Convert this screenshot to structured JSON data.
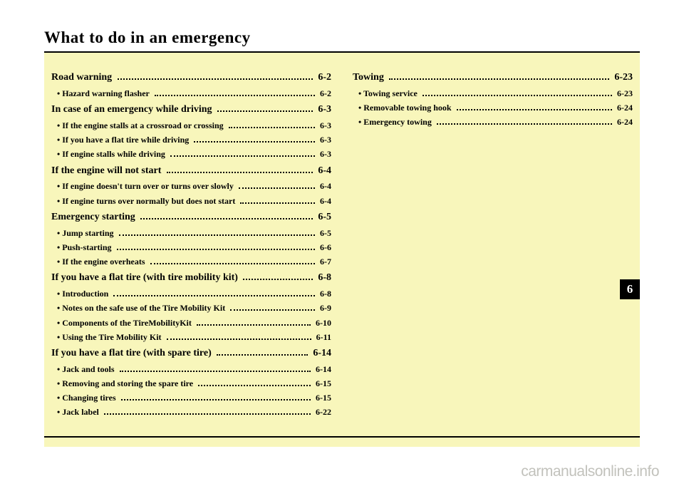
{
  "title": "What to do in an emergency",
  "chapter": "6",
  "watermark": "carmanualsonline.info",
  "col1": [
    {
      "type": "section",
      "label": "Road warning",
      "page": "6-2"
    },
    {
      "type": "sub",
      "label": "• Hazard warning flasher",
      "page": "6-2"
    },
    {
      "type": "section",
      "label": "In case of an emergency while driving",
      "page": "6-3"
    },
    {
      "type": "sub",
      "label": "• If the engine stalls at a crossroad or crossing",
      "page": "6-3"
    },
    {
      "type": "sub",
      "label": "• If you have a flat tire while driving",
      "page": "6-3"
    },
    {
      "type": "sub",
      "label": "• If engine stalls while driving",
      "page": "6-3"
    },
    {
      "type": "section",
      "label": "If the engine will not start",
      "page": "6-4"
    },
    {
      "type": "sub",
      "label": "• If engine doesn't turn over or turns over slowly",
      "page": "6-4"
    },
    {
      "type": "sub",
      "label": "• If engine turns over normally but does not start",
      "page": "6-4"
    },
    {
      "type": "section",
      "label": "Emergency starting",
      "page": "6-5"
    },
    {
      "type": "sub",
      "label": "• Jump starting",
      "page": "6-5"
    },
    {
      "type": "sub",
      "label": "• Push-starting",
      "page": "6-6"
    },
    {
      "type": "sub",
      "label": "• If the engine overheats",
      "page": "6-7"
    },
    {
      "type": "section",
      "label": "If you have a flat tire (with tire mobility kit)",
      "page": "6-8"
    },
    {
      "type": "sub",
      "label": "• Introduction",
      "page": "6-8"
    },
    {
      "type": "sub",
      "label": "• Notes on the safe use of the Tire Mobility Kit",
      "page": "6-9"
    },
    {
      "type": "sub",
      "label": "• Components of the TireMobilityKit",
      "page": "6-10"
    },
    {
      "type": "sub",
      "label": "• Using the Tire Mobility Kit",
      "page": "6-11"
    },
    {
      "type": "section",
      "label": "If you have a flat tire (with spare tire)",
      "page": "6-14"
    },
    {
      "type": "sub",
      "label": "• Jack and tools",
      "page": "6-14"
    },
    {
      "type": "sub",
      "label": "• Removing and storing the spare tire",
      "page": "6-15"
    },
    {
      "type": "sub",
      "label": "• Changing tires",
      "page": "6-15"
    },
    {
      "type": "sub",
      "label": "• Jack label",
      "page": "6-22"
    }
  ],
  "col2": [
    {
      "type": "section",
      "label": "Towing",
      "page": "6-23"
    },
    {
      "type": "sub",
      "label": "• Towing service",
      "page": "6-23"
    },
    {
      "type": "sub",
      "label": "• Removable towing hook",
      "page": "6-24"
    },
    {
      "type": "sub",
      "label": "• Emergency towing",
      "page": "6-24"
    }
  ]
}
